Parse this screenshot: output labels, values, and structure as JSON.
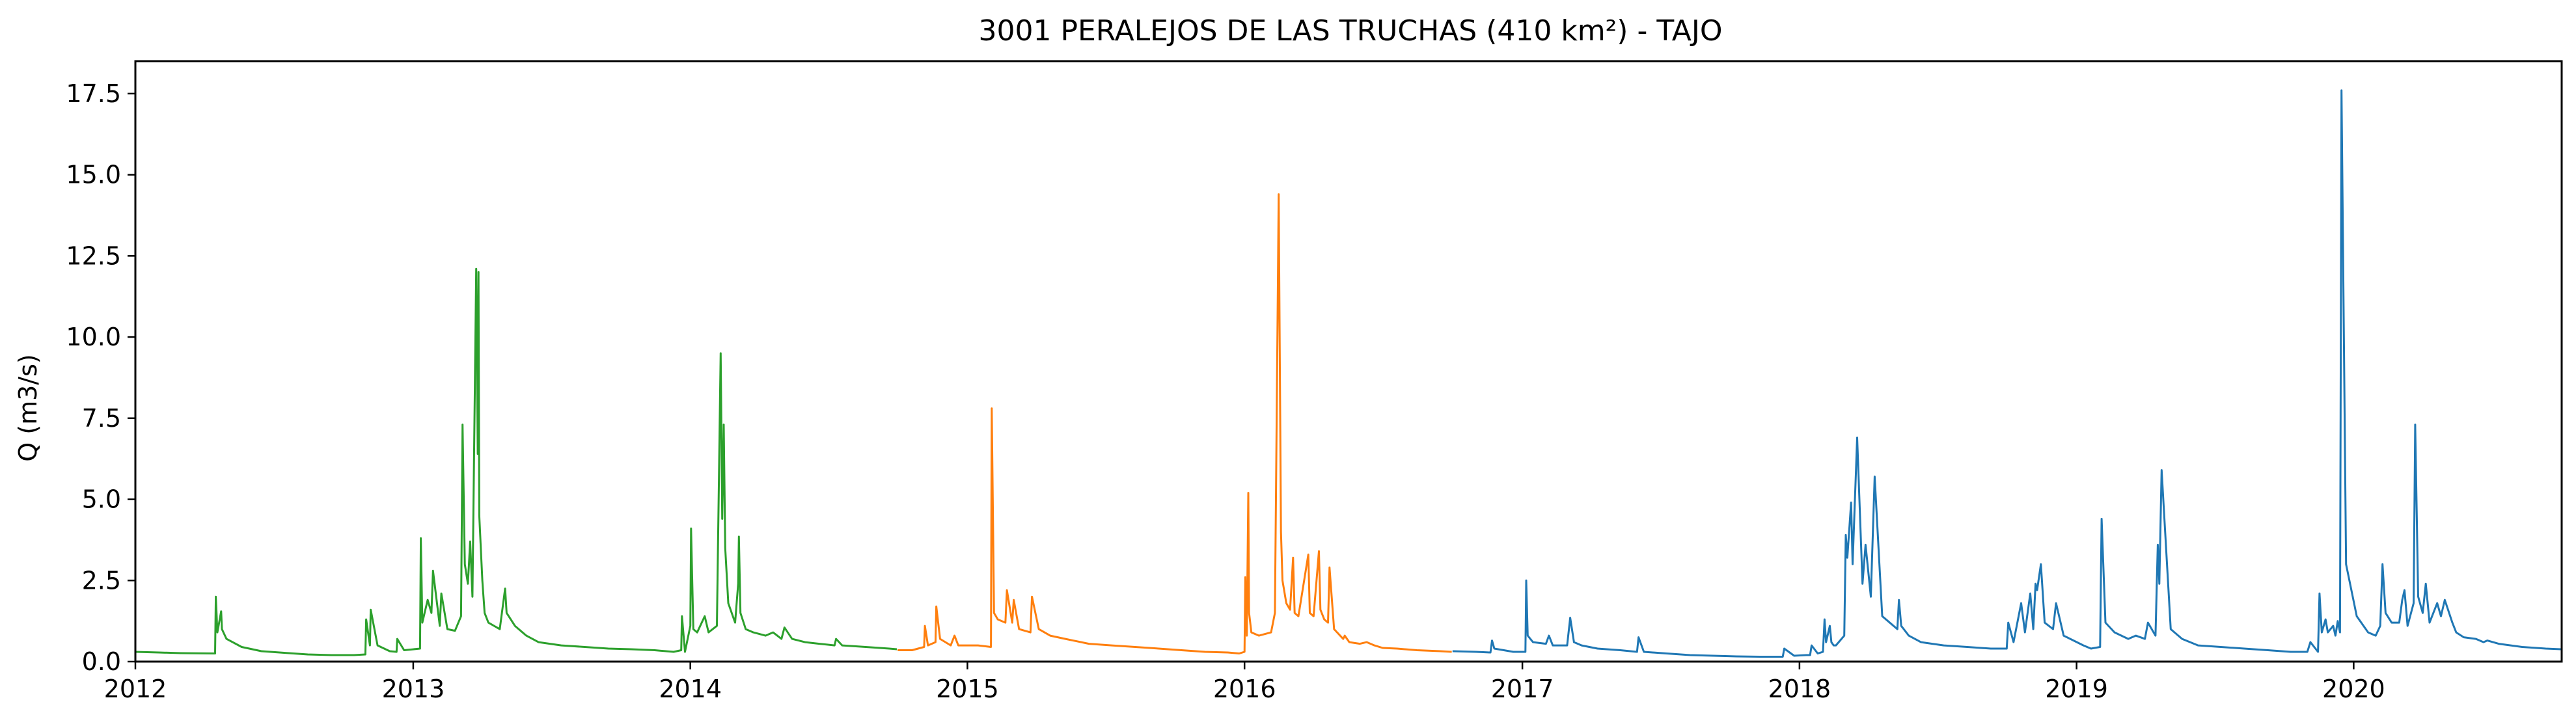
{
  "chart_data": {
    "type": "line",
    "title": "3001 PERALEJOS DE LAS TRUCHAS (410 km²) - TAJO",
    "xlabel": "",
    "ylabel": "Q (m3/s)",
    "xlim": [
      "2012-01-01",
      "2020-10-01"
    ],
    "ylim": [
      0,
      18.5
    ],
    "x_ticks": [
      "2012",
      "2013",
      "2014",
      "2015",
      "2016",
      "2017",
      "2018",
      "2019",
      "2020"
    ],
    "y_ticks": [
      "0.0",
      "2.5",
      "5.0",
      "7.5",
      "10.0",
      "12.5",
      "15.0",
      "17.5"
    ],
    "grid": false,
    "legend": "none",
    "series": [
      {
        "color": "#2ca02c",
        "x": [
          "2012-01-01",
          "2012-02-01",
          "2012-03-01",
          "2012-04-15",
          "2012-04-16",
          "2012-04-18",
          "2012-04-23",
          "2012-04-24",
          "2012-04-30",
          "2012-05-20",
          "2012-06-15",
          "2012-07-15",
          "2012-08-15",
          "2012-09-15",
          "2012-10-15",
          "2012-10-30",
          "2012-10-31",
          "2012-11-05",
          "2012-11-06",
          "2012-11-15",
          "2012-12-01",
          "2012-12-10",
          "2012-12-11",
          "2012-12-20",
          "2013-01-10",
          "2013-01-11",
          "2013-01-13",
          "2013-01-20",
          "2013-01-25",
          "2013-01-27",
          "2013-02-05",
          "2013-02-07",
          "2013-02-15",
          "2013-02-25",
          "2013-03-05",
          "2013-03-07",
          "2013-03-10",
          "2013-03-14",
          "2013-03-17",
          "2013-03-20",
          "2013-03-25",
          "2013-03-27",
          "2013-03-28",
          "2013-03-29",
          "2013-04-02",
          "2013-04-05",
          "2013-04-10",
          "2013-04-25",
          "2013-05-02",
          "2013-05-04",
          "2013-05-15",
          "2013-05-30",
          "2013-06-15",
          "2013-07-15",
          "2013-08-15",
          "2013-09-15",
          "2013-10-15",
          "2013-11-15",
          "2013-12-10",
          "2013-12-20",
          "2013-12-21",
          "2013-12-25",
          "2014-01-01",
          "2014-01-02",
          "2014-01-05",
          "2014-01-10",
          "2014-01-20",
          "2014-01-25",
          "2014-02-05",
          "2014-02-10",
          "2014-02-12",
          "2014-02-14",
          "2014-02-16",
          "2014-02-20",
          "2014-03-01",
          "2014-03-05",
          "2014-03-06",
          "2014-03-08",
          "2014-03-15",
          "2014-03-25",
          "2014-04-10",
          "2014-04-20",
          "2014-05-01",
          "2014-05-05",
          "2014-05-15",
          "2014-06-01",
          "2014-06-20",
          "2014-07-10",
          "2014-07-12",
          "2014-07-20",
          "2014-08-20",
          "2014-09-20",
          "2014-09-30"
        ],
        "values": [
          0.3,
          0.28,
          0.26,
          0.25,
          2.0,
          0.9,
          1.55,
          1.0,
          0.7,
          0.45,
          0.32,
          0.27,
          0.22,
          0.2,
          0.2,
          0.22,
          1.3,
          0.5,
          1.6,
          0.5,
          0.32,
          0.3,
          0.7,
          0.35,
          0.4,
          3.8,
          1.2,
          1.9,
          1.5,
          2.8,
          1.1,
          2.1,
          1.0,
          0.95,
          1.4,
          7.3,
          3.0,
          2.4,
          3.7,
          2.0,
          12.1,
          6.4,
          12.0,
          4.5,
          2.5,
          1.5,
          1.2,
          1.0,
          2.25,
          1.5,
          1.1,
          0.8,
          0.6,
          0.5,
          0.45,
          0.4,
          0.38,
          0.35,
          0.3,
          0.35,
          1.4,
          0.3,
          1.1,
          4.1,
          1.0,
          0.9,
          1.4,
          0.9,
          1.1,
          9.5,
          4.4,
          7.3,
          3.5,
          1.8,
          1.2,
          2.4,
          3.85,
          1.5,
          1.0,
          0.9,
          0.8,
          0.9,
          0.7,
          1.05,
          0.7,
          0.6,
          0.55,
          0.5,
          0.7,
          0.5,
          0.45,
          0.4,
          0.38
        ]
      },
      {
        "color": "#ff7f0e",
        "x": [
          "2014-10-01",
          "2014-10-20",
          "2014-11-05",
          "2014-11-06",
          "2014-11-10",
          "2014-11-20",
          "2014-11-21",
          "2014-11-26",
          "2014-12-10",
          "2014-12-15",
          "2014-12-20",
          "2015-01-15",
          "2015-02-01",
          "2015-02-02",
          "2015-02-05",
          "2015-02-10",
          "2015-02-20",
          "2015-02-22",
          "2015-03-01",
          "2015-03-03",
          "2015-03-10",
          "2015-03-25",
          "2015-03-27",
          "2015-04-05",
          "2015-04-20",
          "2015-05-10",
          "2015-06-10",
          "2015-07-10",
          "2015-08-10",
          "2015-09-10",
          "2015-10-10",
          "2015-11-10",
          "2015-12-10",
          "2015-12-25",
          "2016-01-01",
          "2016-01-02",
          "2016-01-04",
          "2016-01-06",
          "2016-01-07",
          "2016-01-10",
          "2016-01-20",
          "2016-02-05",
          "2016-02-10",
          "2016-02-15",
          "2016-02-18",
          "2016-02-20",
          "2016-02-25",
          "2016-03-01",
          "2016-03-05",
          "2016-03-07",
          "2016-03-12",
          "2016-03-25",
          "2016-03-27",
          "2016-04-01",
          "2016-04-08",
          "2016-04-10",
          "2016-04-15",
          "2016-04-20",
          "2016-04-22",
          "2016-04-28",
          "2016-05-10",
          "2016-05-12",
          "2016-05-18",
          "2016-06-01",
          "2016-06-10",
          "2016-06-20",
          "2016-07-01",
          "2016-07-20",
          "2016-08-15",
          "2016-09-15",
          "2016-09-30"
        ],
        "values": [
          0.35,
          0.35,
          0.45,
          1.1,
          0.5,
          0.6,
          1.7,
          0.7,
          0.5,
          0.8,
          0.5,
          0.5,
          0.45,
          7.8,
          1.5,
          1.3,
          1.2,
          2.2,
          1.2,
          1.9,
          1.0,
          0.9,
          2.0,
          1.0,
          0.8,
          0.7,
          0.55,
          0.5,
          0.45,
          0.4,
          0.35,
          0.3,
          0.28,
          0.25,
          0.3,
          2.6,
          0.8,
          5.2,
          1.5,
          0.9,
          0.8,
          0.9,
          1.5,
          14.4,
          4.0,
          2.5,
          1.8,
          1.6,
          3.2,
          1.5,
          1.4,
          3.3,
          1.5,
          1.4,
          3.4,
          1.6,
          1.3,
          1.2,
          2.9,
          1.0,
          0.7,
          0.8,
          0.6,
          0.55,
          0.6,
          0.5,
          0.42,
          0.4,
          0.35,
          0.32,
          0.3
        ]
      },
      {
        "color": "#1f77b4",
        "x": [
          "2016-10-01",
          "2016-11-01",
          "2016-11-20",
          "2016-11-22",
          "2016-11-25",
          "2016-12-20",
          "2017-01-05",
          "2017-01-06",
          "2017-01-08",
          "2017-01-15",
          "2017-02-01",
          "2017-02-05",
          "2017-02-10",
          "2017-03-01",
          "2017-03-05",
          "2017-03-10",
          "2017-03-20",
          "2017-04-10",
          "2017-05-10",
          "2017-06-01",
          "2017-06-03",
          "2017-06-10",
          "2017-07-10",
          "2017-08-10",
          "2017-09-10",
          "2017-10-10",
          "2017-11-10",
          "2017-12-01",
          "2017-12-10",
          "2017-12-12",
          "2017-12-25",
          "2018-01-10",
          "2018-01-15",
          "2018-01-17",
          "2018-01-25",
          "2018-02-01",
          "2018-02-03",
          "2018-02-05",
          "2018-02-10",
          "2018-02-12",
          "2018-02-15",
          "2018-02-18",
          "2018-03-01",
          "2018-03-03",
          "2018-03-05",
          "2018-03-10",
          "2018-03-12",
          "2018-03-18",
          "2018-03-25",
          "2018-03-29",
          "2018-04-05",
          "2018-04-10",
          "2018-04-20",
          "2018-05-10",
          "2018-05-12",
          "2018-05-15",
          "2018-05-25",
          "2018-06-10",
          "2018-07-10",
          "2018-08-10",
          "2018-09-10",
          "2018-10-01",
          "2018-10-03",
          "2018-10-10",
          "2018-10-20",
          "2018-10-25",
          "2018-11-01",
          "2018-11-05",
          "2018-11-08",
          "2018-11-10",
          "2018-11-15",
          "2018-11-20",
          "2018-12-01",
          "2018-12-05",
          "2018-12-15",
          "2019-01-10",
          "2019-01-20",
          "2019-02-01",
          "2019-02-03",
          "2019-02-08",
          "2019-02-20",
          "2019-03-10",
          "2019-03-20",
          "2019-04-01",
          "2019-04-05",
          "2019-04-15",
          "2019-04-18",
          "2019-04-20",
          "2019-04-23",
          "2019-05-05",
          "2019-05-20",
          "2019-06-10",
          "2019-07-10",
          "2019-08-10",
          "2019-09-10",
          "2019-10-10",
          "2019-11-01",
          "2019-11-05",
          "2019-11-15",
          "2019-11-17",
          "2019-11-20",
          "2019-11-25",
          "2019-11-28",
          "2019-12-05",
          "2019-12-08",
          "2019-12-11",
          "2019-12-14",
          "2019-12-16",
          "2019-12-22",
          "2020-01-05",
          "2020-01-20",
          "2020-01-30",
          "2020-02-05",
          "2020-02-08",
          "2020-02-12",
          "2020-02-20",
          "2020-03-01",
          "2020-03-05",
          "2020-03-08",
          "2020-03-12",
          "2020-03-20",
          "2020-03-22",
          "2020-03-26",
          "2020-04-01",
          "2020-04-05",
          "2020-04-10",
          "2020-04-20",
          "2020-04-25",
          "2020-04-30",
          "2020-05-10",
          "2020-05-15",
          "2020-05-25",
          "2020-06-10",
          "2020-06-20",
          "2020-06-25",
          "2020-07-10",
          "2020-08-10",
          "2020-09-10",
          "2020-09-30"
        ],
        "values": [
          0.32,
          0.3,
          0.28,
          0.65,
          0.4,
          0.3,
          0.3,
          2.5,
          0.8,
          0.6,
          0.55,
          0.8,
          0.5,
          0.5,
          1.35,
          0.6,
          0.5,
          0.4,
          0.35,
          0.3,
          0.75,
          0.3,
          0.25,
          0.2,
          0.18,
          0.16,
          0.15,
          0.15,
          0.15,
          0.4,
          0.18,
          0.2,
          0.2,
          0.5,
          0.25,
          0.3,
          1.3,
          0.6,
          1.1,
          0.6,
          0.5,
          0.5,
          0.8,
          3.9,
          3.2,
          4.9,
          3.0,
          6.9,
          2.4,
          3.6,
          2.0,
          5.7,
          1.4,
          1.0,
          1.9,
          1.1,
          0.8,
          0.6,
          0.5,
          0.45,
          0.4,
          0.4,
          1.2,
          0.6,
          1.8,
          0.9,
          2.1,
          1.0,
          2.4,
          2.2,
          3.0,
          1.2,
          1.0,
          1.8,
          0.8,
          0.5,
          0.4,
          0.45,
          4.4,
          1.2,
          0.9,
          0.7,
          0.8,
          0.7,
          1.2,
          0.8,
          3.6,
          2.4,
          5.9,
          1.0,
          0.7,
          0.5,
          0.45,
          0.4,
          0.35,
          0.3,
          0.3,
          0.6,
          0.3,
          2.1,
          0.9,
          1.3,
          0.9,
          1.1,
          0.8,
          1.25,
          0.9,
          17.6,
          3.0,
          1.4,
          0.9,
          0.8,
          1.1,
          3.0,
          1.5,
          1.2,
          1.2,
          1.9,
          2.2,
          1.1,
          1.8,
          7.3,
          2.0,
          1.5,
          2.4,
          1.2,
          1.8,
          1.4,
          1.9,
          1.2,
          0.9,
          0.75,
          0.7,
          0.6,
          0.65,
          0.55,
          0.45,
          0.4,
          0.38
        ]
      }
    ]
  }
}
